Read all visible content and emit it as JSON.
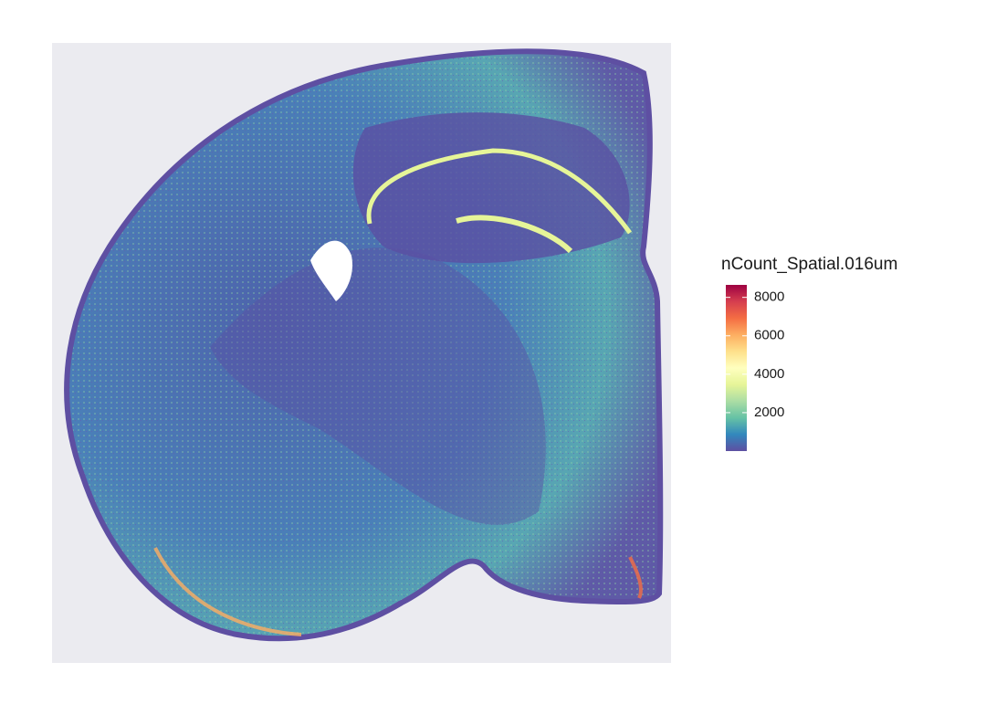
{
  "chart_data": {
    "type": "spatial",
    "legend_title": "nCount_Spatial.016um",
    "clim": [
      0,
      8650
    ],
    "cticks": [
      2000,
      4000,
      6000,
      8000
    ],
    "colors": [
      "#5E4FA2",
      "#3288BD",
      "#66C2A5",
      "#ABDDA4",
      "#E6F598",
      "#FFFFBF",
      "#FEE08B",
      "#FDAE61",
      "#F46D43",
      "#D53E4F",
      "#9E0142"
    ],
    "legend_position": "right"
  }
}
